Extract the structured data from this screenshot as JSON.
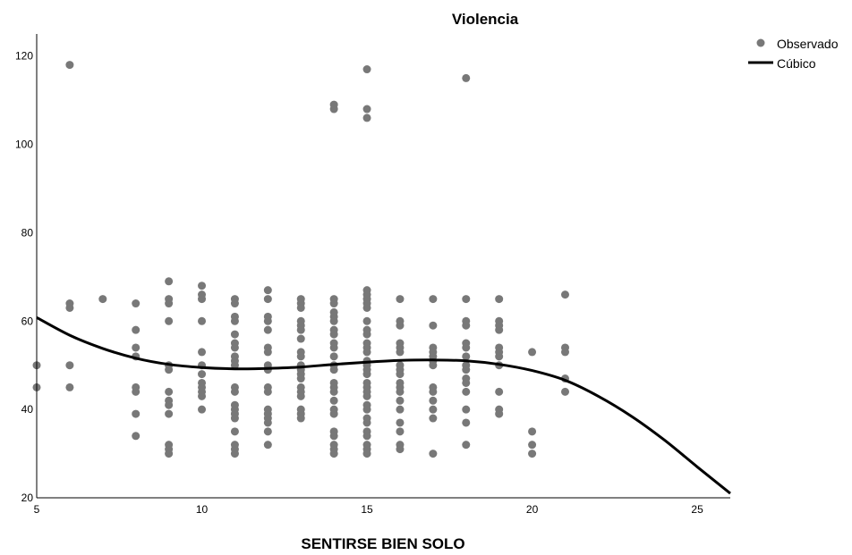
{
  "chart_data": {
    "type": "scatter",
    "title": "Violencia",
    "xlabel": "SENTIRSE BIEN SOLO",
    "ylabel": "",
    "xlim": [
      5,
      26
    ],
    "ylim": [
      20,
      125
    ],
    "xticks": [
      5,
      10,
      15,
      20,
      25
    ],
    "yticks": [
      20,
      40,
      60,
      80,
      100,
      120
    ],
    "grid": false,
    "legend_position": "top-right",
    "colors": {
      "observed": "#787878",
      "fit": "#000000"
    },
    "series": [
      {
        "name": "Observado",
        "kind": "scatter",
        "points": [
          [
            5,
            50
          ],
          [
            5,
            45
          ],
          [
            6,
            118
          ],
          [
            6,
            64
          ],
          [
            6,
            63
          ],
          [
            6,
            50
          ],
          [
            6,
            45
          ],
          [
            7,
            65
          ],
          [
            8,
            64
          ],
          [
            8,
            58
          ],
          [
            8,
            54
          ],
          [
            8,
            52
          ],
          [
            8,
            45
          ],
          [
            8,
            44
          ],
          [
            8,
            39
          ],
          [
            8,
            34
          ],
          [
            9,
            69
          ],
          [
            9,
            65
          ],
          [
            9,
            64
          ],
          [
            9,
            60
          ],
          [
            9,
            50
          ],
          [
            9,
            49
          ],
          [
            9,
            44
          ],
          [
            9,
            42
          ],
          [
            9,
            41
          ],
          [
            9,
            39
          ],
          [
            9,
            32
          ],
          [
            9,
            31
          ],
          [
            9,
            30
          ],
          [
            10,
            68
          ],
          [
            10,
            66
          ],
          [
            10,
            65
          ],
          [
            10,
            60
          ],
          [
            10,
            53
          ],
          [
            10,
            50
          ],
          [
            10,
            48
          ],
          [
            10,
            46
          ],
          [
            10,
            45
          ],
          [
            10,
            44
          ],
          [
            10,
            43
          ],
          [
            10,
            40
          ],
          [
            11,
            65
          ],
          [
            11,
            64
          ],
          [
            11,
            61
          ],
          [
            11,
            60
          ],
          [
            11,
            57
          ],
          [
            11,
            55
          ],
          [
            11,
            54
          ],
          [
            11,
            52
          ],
          [
            11,
            51
          ],
          [
            11,
            50
          ],
          [
            11,
            45
          ],
          [
            11,
            44
          ],
          [
            11,
            41
          ],
          [
            11,
            40
          ],
          [
            11,
            39
          ],
          [
            11,
            38
          ],
          [
            11,
            35
          ],
          [
            11,
            32
          ],
          [
            11,
            31
          ],
          [
            11,
            30
          ],
          [
            12,
            67
          ],
          [
            12,
            65
          ],
          [
            12,
            61
          ],
          [
            12,
            60
          ],
          [
            12,
            58
          ],
          [
            12,
            54
          ],
          [
            12,
            53
          ],
          [
            12,
            50
          ],
          [
            12,
            49
          ],
          [
            12,
            45
          ],
          [
            12,
            44
          ],
          [
            12,
            40
          ],
          [
            12,
            39
          ],
          [
            12,
            38
          ],
          [
            12,
            37
          ],
          [
            12,
            35
          ],
          [
            12,
            32
          ],
          [
            13,
            65
          ],
          [
            13,
            64
          ],
          [
            13,
            63
          ],
          [
            13,
            60
          ],
          [
            13,
            59
          ],
          [
            13,
            58
          ],
          [
            13,
            56
          ],
          [
            13,
            53
          ],
          [
            13,
            52
          ],
          [
            13,
            50
          ],
          [
            13,
            49
          ],
          [
            13,
            48
          ],
          [
            13,
            47
          ],
          [
            13,
            45
          ],
          [
            13,
            44
          ],
          [
            13,
            43
          ],
          [
            13,
            40
          ],
          [
            13,
            39
          ],
          [
            13,
            38
          ],
          [
            14,
            109
          ],
          [
            14,
            108
          ],
          [
            14,
            65
          ],
          [
            14,
            64
          ],
          [
            14,
            62
          ],
          [
            14,
            61
          ],
          [
            14,
            60
          ],
          [
            14,
            58
          ],
          [
            14,
            57
          ],
          [
            14,
            55
          ],
          [
            14,
            54
          ],
          [
            14,
            52
          ],
          [
            14,
            50
          ],
          [
            14,
            49
          ],
          [
            14,
            46
          ],
          [
            14,
            45
          ],
          [
            14,
            44
          ],
          [
            14,
            42
          ],
          [
            14,
            40
          ],
          [
            14,
            39
          ],
          [
            14,
            35
          ],
          [
            14,
            34
          ],
          [
            14,
            32
          ],
          [
            14,
            31
          ],
          [
            14,
            30
          ],
          [
            15,
            117
          ],
          [
            15,
            108
          ],
          [
            15,
            106
          ],
          [
            15,
            67
          ],
          [
            15,
            66
          ],
          [
            15,
            65
          ],
          [
            15,
            64
          ],
          [
            15,
            63
          ],
          [
            15,
            60
          ],
          [
            15,
            58
          ],
          [
            15,
            57
          ],
          [
            15,
            55
          ],
          [
            15,
            54
          ],
          [
            15,
            53
          ],
          [
            15,
            51
          ],
          [
            15,
            50
          ],
          [
            15,
            49
          ],
          [
            15,
            48
          ],
          [
            15,
            46
          ],
          [
            15,
            45
          ],
          [
            15,
            44
          ],
          [
            15,
            43
          ],
          [
            15,
            41
          ],
          [
            15,
            40
          ],
          [
            15,
            38
          ],
          [
            15,
            37
          ],
          [
            15,
            35
          ],
          [
            15,
            34
          ],
          [
            15,
            32
          ],
          [
            15,
            31
          ],
          [
            15,
            30
          ],
          [
            16,
            65
          ],
          [
            16,
            60
          ],
          [
            16,
            59
          ],
          [
            16,
            55
          ],
          [
            16,
            54
          ],
          [
            16,
            53
          ],
          [
            16,
            50
          ],
          [
            16,
            49
          ],
          [
            16,
            48
          ],
          [
            16,
            46
          ],
          [
            16,
            45
          ],
          [
            16,
            44
          ],
          [
            16,
            42
          ],
          [
            16,
            40
          ],
          [
            16,
            37
          ],
          [
            16,
            35
          ],
          [
            16,
            32
          ],
          [
            16,
            31
          ],
          [
            17,
            65
          ],
          [
            17,
            59
          ],
          [
            17,
            54
          ],
          [
            17,
            53
          ],
          [
            17,
            52
          ],
          [
            17,
            51
          ],
          [
            17,
            50
          ],
          [
            17,
            45
          ],
          [
            17,
            44
          ],
          [
            17,
            42
          ],
          [
            17,
            40
          ],
          [
            17,
            38
          ],
          [
            17,
            30
          ],
          [
            18,
            115
          ],
          [
            18,
            65
          ],
          [
            18,
            60
          ],
          [
            18,
            59
          ],
          [
            18,
            55
          ],
          [
            18,
            54
          ],
          [
            18,
            52
          ],
          [
            18,
            50
          ],
          [
            18,
            49
          ],
          [
            18,
            47
          ],
          [
            18,
            46
          ],
          [
            18,
            44
          ],
          [
            18,
            40
          ],
          [
            18,
            37
          ],
          [
            18,
            32
          ],
          [
            19,
            65
          ],
          [
            19,
            60
          ],
          [
            19,
            59
          ],
          [
            19,
            58
          ],
          [
            19,
            54
          ],
          [
            19,
            53
          ],
          [
            19,
            52
          ],
          [
            19,
            50
          ],
          [
            19,
            44
          ],
          [
            19,
            40
          ],
          [
            19,
            39
          ],
          [
            20,
            53
          ],
          [
            20,
            35
          ],
          [
            20,
            32
          ],
          [
            20,
            30
          ],
          [
            21,
            66
          ],
          [
            21,
            54
          ],
          [
            21,
            53
          ],
          [
            21,
            47
          ],
          [
            21,
            44
          ]
        ]
      },
      {
        "name": "Cúbico",
        "kind": "line",
        "points": [
          [
            5,
            60.8
          ],
          [
            6,
            56.8
          ],
          [
            7,
            53.8
          ],
          [
            8,
            51.6
          ],
          [
            9,
            50.2
          ],
          [
            10,
            49.5
          ],
          [
            11,
            49.2
          ],
          [
            12,
            49.3
          ],
          [
            13,
            49.6
          ],
          [
            14,
            50.2
          ],
          [
            15,
            50.7
          ],
          [
            16,
            51.1
          ],
          [
            17,
            51.2
          ],
          [
            18,
            51.0
          ],
          [
            19,
            50.2
          ],
          [
            20,
            48.8
          ],
          [
            21,
            46.6
          ],
          [
            22,
            43.0
          ],
          [
            23,
            38.5
          ],
          [
            24,
            33.1
          ],
          [
            25,
            27.0
          ],
          [
            26,
            21.0
          ]
        ]
      }
    ]
  }
}
